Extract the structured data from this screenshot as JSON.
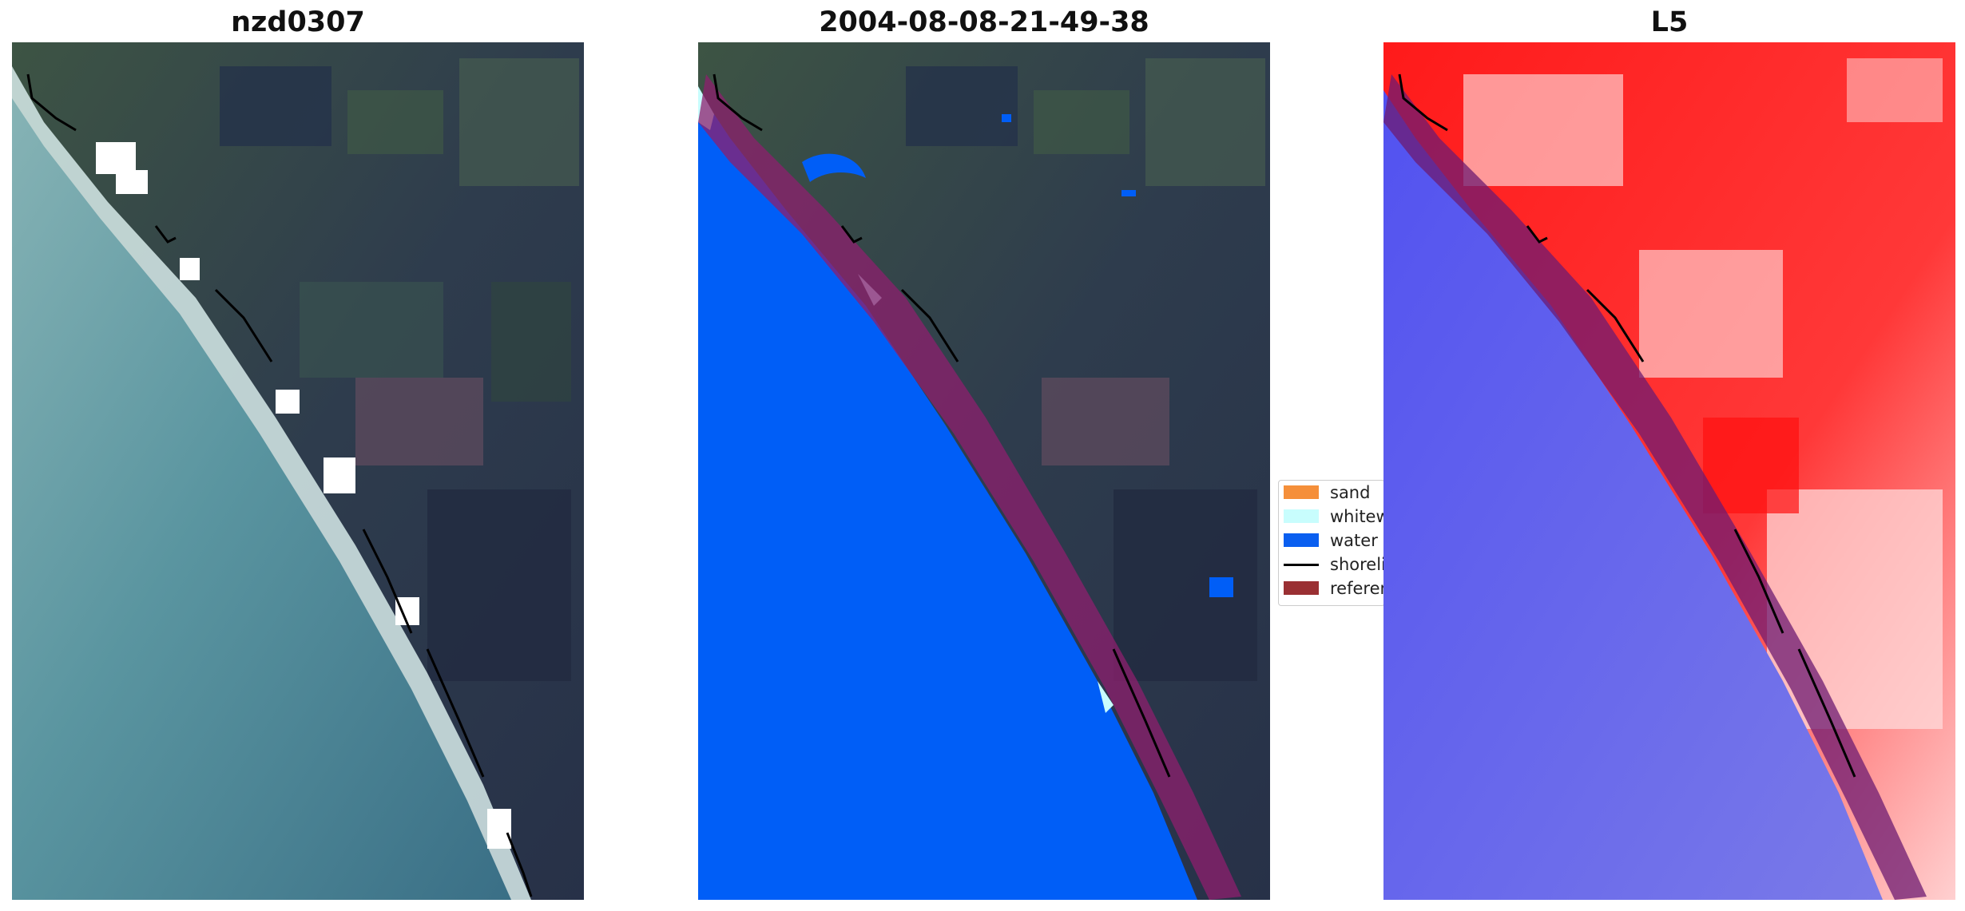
{
  "panels": [
    {
      "title": "nzd0307"
    },
    {
      "title": "2004-08-08-21-49-38"
    },
    {
      "title": "L5"
    }
  ],
  "legend": {
    "items": [
      {
        "label": "sand",
        "color": "#f58f3a"
      },
      {
        "label": "whitewater",
        "color": "#c8fdfd"
      },
      {
        "label": "water",
        "color": "#0a5ff0"
      },
      {
        "label": "shoreline",
        "color": "#000000"
      },
      {
        "label": "reference shoreline buffer",
        "color": "#9a3033"
      }
    ]
  },
  "colors": {
    "ocean_rgb": "#4f8b97",
    "land_rgb": "#2f3c52",
    "water_class": "#005ef7",
    "buffer": "#8e1f6e",
    "index_land": "#ff2020",
    "index_water": "#3a3ae0"
  }
}
